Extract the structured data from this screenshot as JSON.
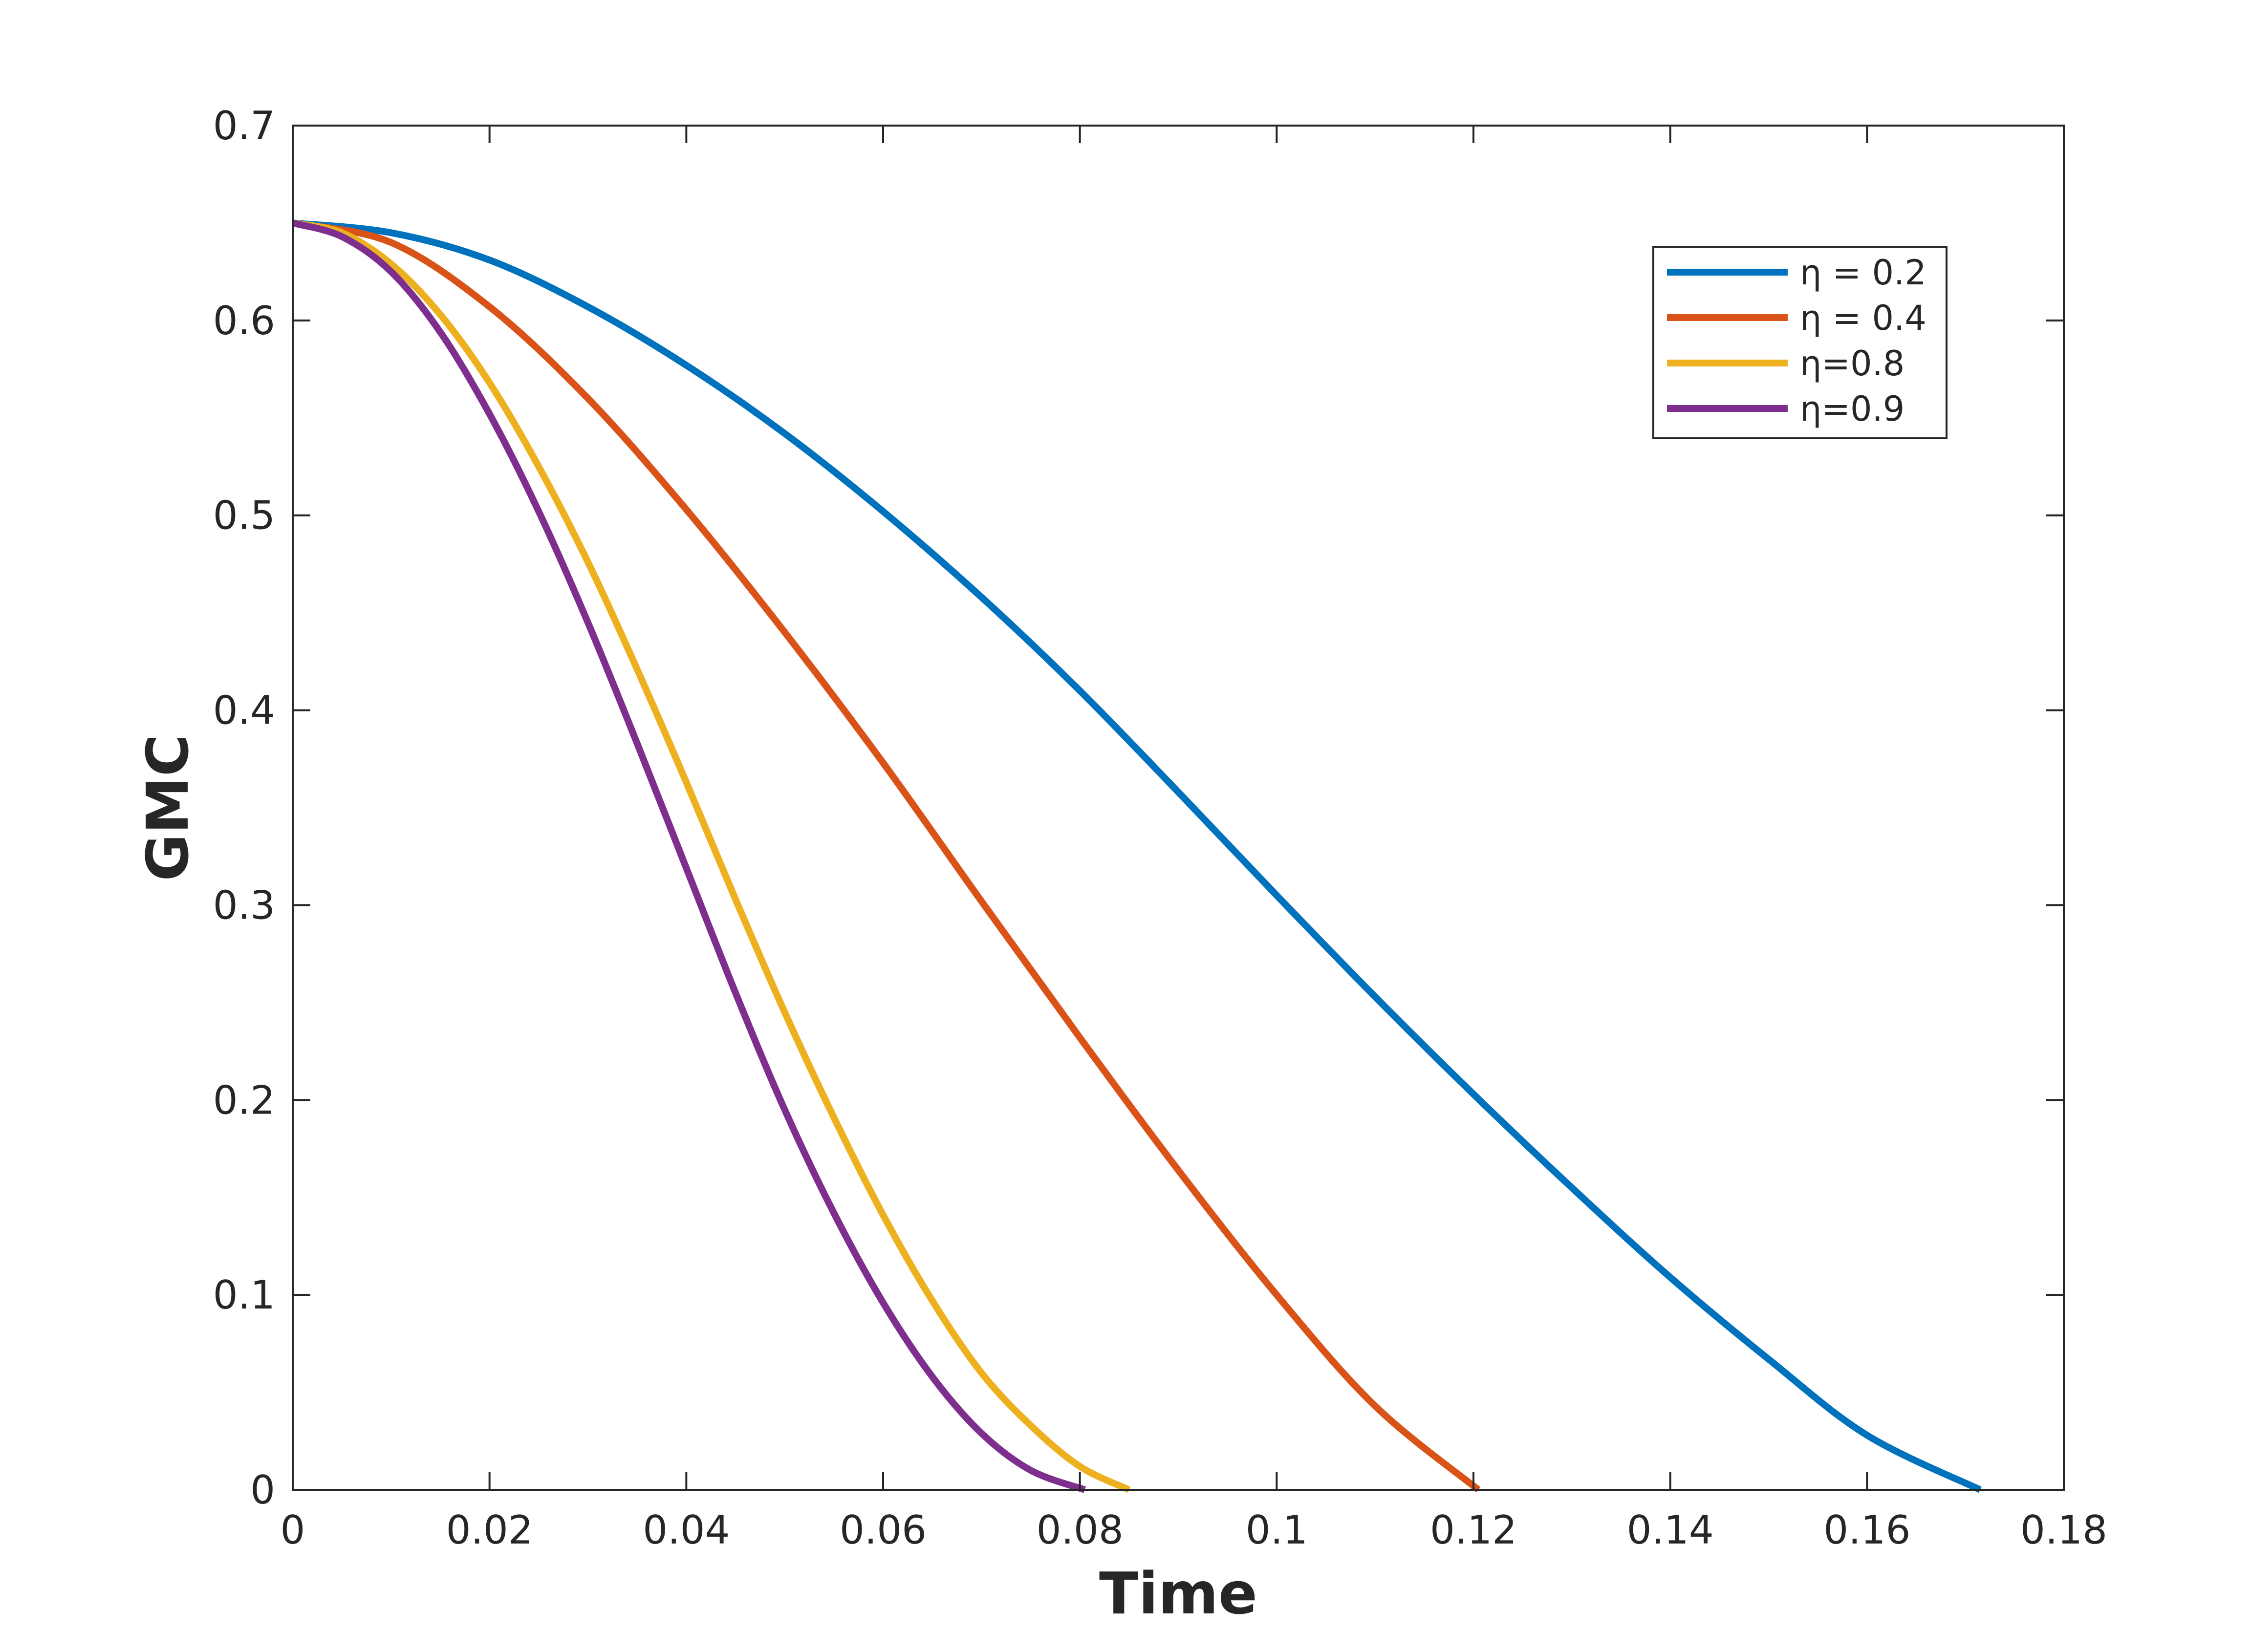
{
  "chart_data": {
    "type": "line",
    "title": "",
    "xlabel": "Time",
    "ylabel": "GMC",
    "xlim": [
      0,
      0.18
    ],
    "ylim": [
      0,
      0.7
    ],
    "xticks": [
      0,
      0.02,
      0.04,
      0.06,
      0.08,
      0.1,
      0.12,
      0.14,
      0.16,
      0.18
    ],
    "xtick_labels": [
      "0",
      "0.02",
      "0.04",
      "0.06",
      "0.08",
      "0.1",
      "0.12",
      "0.14",
      "0.16",
      "0.18"
    ],
    "yticks": [
      0,
      0.1,
      0.2,
      0.3,
      0.4,
      0.5,
      0.6,
      0.7
    ],
    "ytick_labels": [
      "0",
      "0.1",
      "0.2",
      "0.3",
      "0.4",
      "0.5",
      "0.6",
      "0.7"
    ],
    "grid": false,
    "legend_position": "top-right",
    "series": [
      {
        "name": "η = 0.2",
        "color": "#0072BD",
        "x": [
          0,
          0.01,
          0.02,
          0.03,
          0.04,
          0.05,
          0.06,
          0.07,
          0.08,
          0.09,
          0.1,
          0.11,
          0.12,
          0.13,
          0.14,
          0.15,
          0.16,
          0.1715
        ],
        "y": [
          0.65,
          0.645,
          0.631,
          0.607,
          0.577,
          0.542,
          0.502,
          0.458,
          0.41,
          0.358,
          0.305,
          0.253,
          0.203,
          0.155,
          0.109,
          0.067,
          0.028,
          0.0
        ]
      },
      {
        "name": "η = 0.4",
        "color": "#D95319",
        "x": [
          0,
          0.01,
          0.02,
          0.03,
          0.04,
          0.05,
          0.06,
          0.07,
          0.08,
          0.09,
          0.1,
          0.11,
          0.1205
        ],
        "y": [
          0.65,
          0.64,
          0.607,
          0.56,
          0.503,
          0.44,
          0.373,
          0.302,
          0.232,
          0.164,
          0.1,
          0.043,
          0.0
        ]
      },
      {
        "name": "η=0.8",
        "color": "#EDB120",
        "x": [
          0,
          0.005,
          0.01,
          0.015,
          0.02,
          0.025,
          0.03,
          0.035,
          0.04,
          0.045,
          0.05,
          0.055,
          0.06,
          0.065,
          0.07,
          0.075,
          0.08,
          0.085
        ],
        "y": [
          0.65,
          0.645,
          0.629,
          0.603,
          0.568,
          0.525,
          0.476,
          0.421,
          0.363,
          0.303,
          0.245,
          0.191,
          0.141,
          0.097,
          0.06,
          0.033,
          0.012,
          0.0
        ]
      },
      {
        "name": "η=0.9",
        "color": "#7E2F8E",
        "x": [
          0,
          0.005,
          0.01,
          0.015,
          0.02,
          0.025,
          0.03,
          0.035,
          0.04,
          0.045,
          0.05,
          0.055,
          0.06,
          0.065,
          0.07,
          0.075,
          0.0805
        ],
        "y": [
          0.65,
          0.643,
          0.625,
          0.594,
          0.552,
          0.502,
          0.445,
          0.383,
          0.319,
          0.255,
          0.195,
          0.142,
          0.096,
          0.058,
          0.029,
          0.01,
          0.0
        ]
      }
    ]
  }
}
